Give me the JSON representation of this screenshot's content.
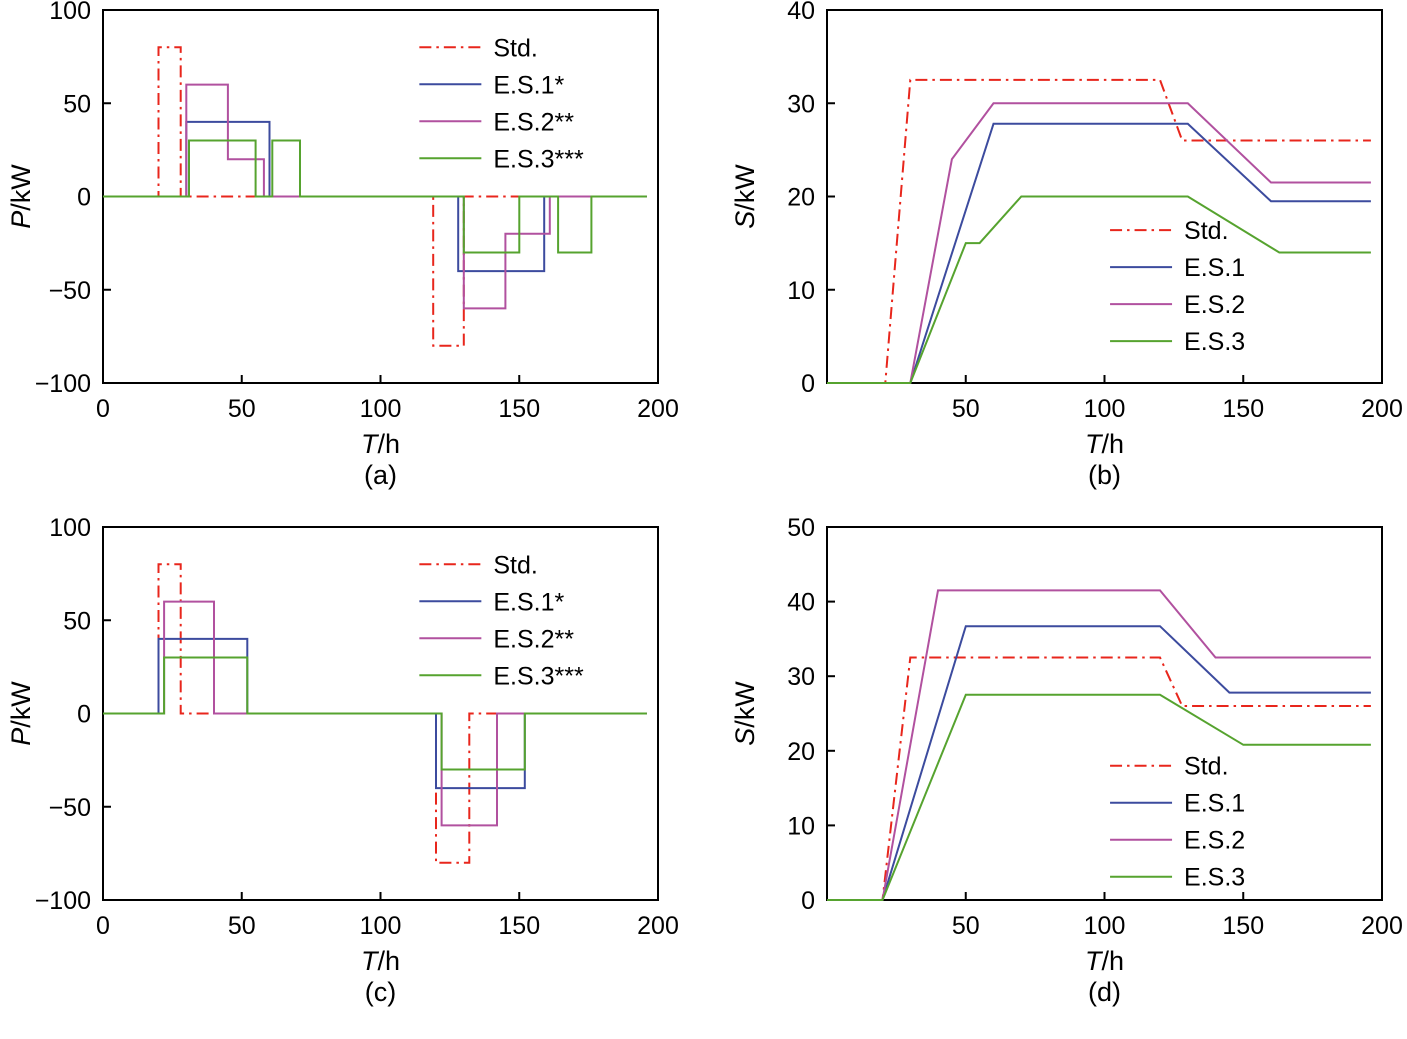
{
  "figure": {
    "background": "#ffffff"
  },
  "colors": {
    "axis": "#000000",
    "std": "#e8261c",
    "es1": "#3c4b9e",
    "es2": "#b1519f",
    "es3": "#56a32f"
  },
  "chart_data": [
    {
      "id": "a",
      "type": "line",
      "caption": "(a)",
      "xlabel": "T/h",
      "ylabel": "P/kW",
      "xlim": [
        0,
        200
      ],
      "ylim": [
        -100,
        100
      ],
      "xticks": [
        0,
        50,
        100,
        150,
        200
      ],
      "yticks": [
        -100,
        -50,
        0,
        50,
        100
      ],
      "grid": false,
      "legend": {
        "x": 0.57,
        "y": 0.1,
        "items": [
          "Std.",
          "E.S.1*",
          "E.S.2**",
          "E.S.3***"
        ]
      },
      "series": [
        {
          "name": "Std.",
          "color": "#e8261c",
          "style": "dashdot",
          "x": [
            0,
            20,
            20,
            28,
            28,
            119,
            119,
            130,
            130,
            196
          ],
          "y": [
            0,
            0,
            80,
            80,
            0,
            0,
            -80,
            -80,
            0,
            0
          ]
        },
        {
          "name": "E.S.1*",
          "color": "#3c4b9e",
          "style": "solid",
          "x": [
            0,
            30,
            30,
            60,
            60,
            128,
            128,
            159,
            159,
            196
          ],
          "y": [
            0,
            0,
            40,
            40,
            0,
            0,
            -40,
            -40,
            0,
            0
          ]
        },
        {
          "name": "E.S.2**",
          "color": "#b1519f",
          "style": "solid",
          "x": [
            0,
            30,
            30,
            45,
            45,
            58,
            58,
            130,
            130,
            145,
            145,
            161,
            161,
            196
          ],
          "y": [
            0,
            0,
            60,
            60,
            20,
            20,
            0,
            0,
            -60,
            -60,
            -20,
            -20,
            0,
            0
          ]
        },
        {
          "name": "E.S.3***",
          "color": "#56a32f",
          "style": "solid",
          "x": [
            0,
            31,
            31,
            55,
            55,
            61,
            61,
            71,
            71,
            130,
            130,
            150,
            150,
            164,
            164,
            176,
            176,
            196
          ],
          "y": [
            0,
            0,
            30,
            30,
            0,
            0,
            30,
            30,
            0,
            0,
            -30,
            -30,
            0,
            0,
            -30,
            -30,
            0,
            0
          ]
        }
      ]
    },
    {
      "id": "b",
      "type": "line",
      "caption": "(b)",
      "xlabel": "T/h",
      "ylabel": "S/kW",
      "xlim": [
        0,
        200
      ],
      "ylim": [
        0,
        40
      ],
      "xticks": [
        50,
        100,
        150,
        200
      ],
      "yticks": [
        0,
        10,
        20,
        30,
        40
      ],
      "grid": false,
      "legend": {
        "x": 0.51,
        "y": 0.59,
        "items": [
          "Std.",
          "E.S.1",
          "E.S.2",
          "E.S.3"
        ]
      },
      "series": [
        {
          "name": "Std.",
          "color": "#e8261c",
          "style": "dashdot",
          "x": [
            0,
            21,
            30,
            120,
            128,
            196
          ],
          "y": [
            0,
            0,
            32.5,
            32.5,
            26,
            26
          ]
        },
        {
          "name": "E.S.1",
          "color": "#3c4b9e",
          "style": "solid",
          "x": [
            0,
            30,
            60,
            130,
            160,
            196
          ],
          "y": [
            0,
            0,
            27.8,
            27.8,
            19.5,
            19.5
          ]
        },
        {
          "name": "E.S.2",
          "color": "#b1519f",
          "style": "solid",
          "x": [
            0,
            30,
            45,
            60,
            130,
            160,
            196
          ],
          "y": [
            0,
            0,
            24,
            30,
            30,
            21.5,
            21.5
          ]
        },
        {
          "name": "E.S.3",
          "color": "#56a32f",
          "style": "solid",
          "x": [
            0,
            30,
            50,
            55,
            70,
            130,
            163,
            196
          ],
          "y": [
            0,
            0,
            15,
            15,
            20,
            20,
            14,
            14
          ]
        }
      ]
    },
    {
      "id": "c",
      "type": "line",
      "caption": "(c)",
      "xlabel": "T/h",
      "ylabel": "P/kW",
      "xlim": [
        0,
        200
      ],
      "ylim": [
        -100,
        100
      ],
      "xticks": [
        0,
        50,
        100,
        150,
        200
      ],
      "yticks": [
        -100,
        -50,
        0,
        50,
        100
      ],
      "grid": false,
      "legend": {
        "x": 0.57,
        "y": 0.1,
        "items": [
          "Std.",
          "E.S.1*",
          "E.S.2**",
          "E.S.3***"
        ]
      },
      "series": [
        {
          "name": "Std.",
          "color": "#e8261c",
          "style": "dashdot",
          "x": [
            0,
            20,
            20,
            28,
            28,
            120,
            120,
            132,
            132,
            196
          ],
          "y": [
            0,
            0,
            80,
            80,
            0,
            0,
            -80,
            -80,
            0,
            0
          ]
        },
        {
          "name": "E.S.1*",
          "color": "#3c4b9e",
          "style": "solid",
          "x": [
            0,
            20,
            20,
            52,
            52,
            120,
            120,
            152,
            152,
            196
          ],
          "y": [
            0,
            0,
            40,
            40,
            0,
            0,
            -40,
            -40,
            0,
            0
          ]
        },
        {
          "name": "E.S.2**",
          "color": "#b1519f",
          "style": "solid",
          "x": [
            0,
            22,
            22,
            40,
            40,
            122,
            122,
            142,
            142,
            196
          ],
          "y": [
            0,
            0,
            60,
            60,
            0,
            0,
            -60,
            -60,
            0,
            0
          ]
        },
        {
          "name": "E.S.3***",
          "color": "#56a32f",
          "style": "solid",
          "x": [
            0,
            22,
            22,
            52,
            52,
            122,
            122,
            152,
            152,
            196
          ],
          "y": [
            0,
            0,
            30,
            30,
            0,
            0,
            -30,
            -30,
            0,
            0
          ]
        }
      ]
    },
    {
      "id": "d",
      "type": "line",
      "caption": "(d)",
      "xlabel": "T/h",
      "ylabel": "S/kW",
      "xlim": [
        0,
        200
      ],
      "ylim": [
        0,
        50
      ],
      "xticks": [
        50,
        100,
        150,
        200
      ],
      "yticks": [
        0,
        10,
        20,
        30,
        40,
        50
      ],
      "grid": false,
      "legend": {
        "x": 0.51,
        "y": 0.64,
        "items": [
          "Std.",
          "E.S.1",
          "E.S.2",
          "E.S.3"
        ]
      },
      "series": [
        {
          "name": "Std.",
          "color": "#e8261c",
          "style": "dashdot",
          "x": [
            0,
            20,
            30,
            120,
            128,
            196
          ],
          "y": [
            0,
            0,
            32.5,
            32.5,
            26,
            26
          ]
        },
        {
          "name": "E.S.1",
          "color": "#3c4b9e",
          "style": "solid",
          "x": [
            0,
            20,
            50,
            120,
            145,
            196
          ],
          "y": [
            0,
            0,
            36.7,
            36.7,
            27.8,
            27.8
          ]
        },
        {
          "name": "E.S.2",
          "color": "#b1519f",
          "style": "solid",
          "x": [
            0,
            20,
            40,
            120,
            140,
            196
          ],
          "y": [
            0,
            0,
            41.5,
            41.5,
            32.5,
            32.5
          ]
        },
        {
          "name": "E.S.3",
          "color": "#56a32f",
          "style": "solid",
          "x": [
            0,
            20,
            50,
            120,
            150,
            196
          ],
          "y": [
            0,
            0,
            27.5,
            27.5,
            20.8,
            20.8
          ]
        }
      ]
    }
  ]
}
